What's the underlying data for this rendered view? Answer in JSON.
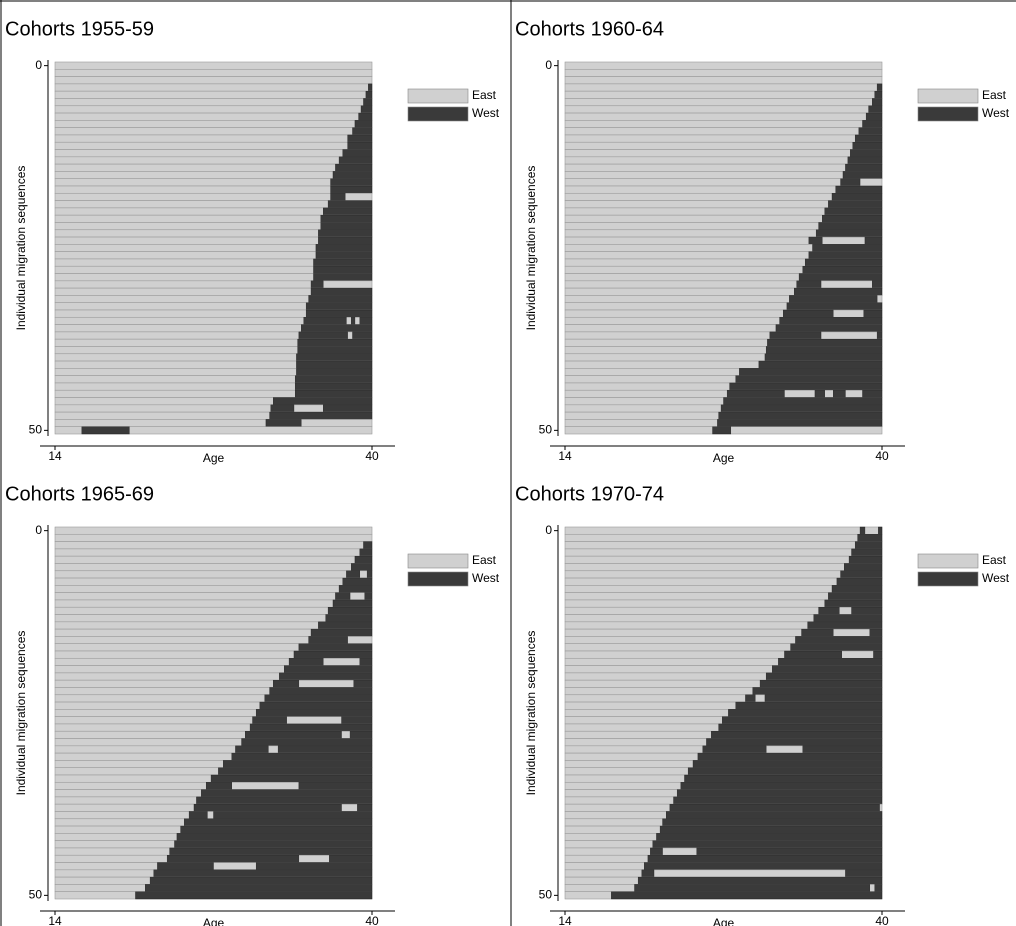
{
  "chart_data": [
    {
      "type": "sequence",
      "title": "Cohorts 1955-59",
      "xlabel": "Age",
      "ylabel": "Individual migration sequences",
      "xlim": [
        14,
        40
      ],
      "xticks": [
        14,
        40
      ],
      "ylim": [
        0,
        50
      ],
      "yticks": [
        0,
        50
      ],
      "series": [
        {
          "name": "East",
          "color": "#d0d0d0"
        },
        {
          "name": "West",
          "color": "#3a3a3a"
        }
      ],
      "sequences": [
        [],
        [],
        [],
        [
          [
            39.7,
            40
          ]
        ],
        [
          [
            39.5,
            40
          ]
        ],
        [
          [
            39.3,
            40
          ]
        ],
        [
          [
            39.1,
            40
          ]
        ],
        [
          [
            38.9,
            40
          ]
        ],
        [
          [
            38.6,
            40
          ]
        ],
        [
          [
            38.4,
            40
          ]
        ],
        [
          [
            38.0,
            40
          ]
        ],
        [
          [
            38.0,
            40
          ]
        ],
        [
          [
            37.6,
            40
          ]
        ],
        [
          [
            37.3,
            40
          ]
        ],
        [
          [
            37.0,
            40
          ]
        ],
        [
          [
            36.8,
            40
          ]
        ],
        [
          [
            36.6,
            40
          ]
        ],
        [
          [
            36.6,
            40
          ]
        ],
        [
          [
            36.6,
            37.8
          ]
        ],
        [
          [
            36.4,
            40
          ]
        ],
        [
          [
            36.0,
            40
          ]
        ],
        [
          [
            35.8,
            40
          ]
        ],
        [
          [
            35.8,
            40
          ]
        ],
        [
          [
            35.6,
            40
          ]
        ],
        [
          [
            35.6,
            40
          ]
        ],
        [
          [
            35.4,
            40
          ]
        ],
        [
          [
            35.4,
            40
          ]
        ],
        [
          [
            35.2,
            40
          ]
        ],
        [
          [
            35.2,
            40
          ]
        ],
        [
          [
            35.2,
            40
          ]
        ],
        [
          [
            35.0,
            36.0
          ]
        ],
        [
          [
            35.0,
            40
          ]
        ],
        [
          [
            34.8,
            40
          ]
        ],
        [
          [
            34.6,
            40
          ]
        ],
        [
          [
            34.6,
            40
          ]
        ],
        [
          [
            34.4,
            37.9
          ],
          [
            38.3,
            38.6
          ],
          [
            39.0,
            40
          ]
        ],
        [
          [
            34.2,
            40
          ]
        ],
        [
          [
            34.0,
            38.0
          ],
          [
            38.4,
            40
          ]
        ],
        [
          [
            33.9,
            40
          ]
        ],
        [
          [
            33.9,
            40
          ]
        ],
        [
          [
            33.8,
            40
          ]
        ],
        [
          [
            33.8,
            40
          ]
        ],
        [
          [
            33.8,
            40
          ]
        ],
        [
          [
            33.7,
            40
          ]
        ],
        [
          [
            33.7,
            40
          ]
        ],
        [
          [
            33.7,
            40
          ]
        ],
        [
          [
            31.9,
            40
          ]
        ],
        [
          [
            31.7,
            33.6
          ],
          [
            36.0,
            40
          ]
        ],
        [
          [
            31.6,
            40
          ]
        ],
        [
          [
            31.3,
            34.2
          ]
        ],
        [
          [
            16.2,
            20.1
          ]
        ]
      ]
    },
    {
      "type": "sequence",
      "title": "Cohorts 1960-64",
      "xlabel": "Age",
      "ylabel": "Individual migration sequences",
      "xlim": [
        14,
        40
      ],
      "xticks": [
        14,
        40
      ],
      "ylim": [
        0,
        50
      ],
      "yticks": [
        0,
        50
      ],
      "series": [
        {
          "name": "East",
          "color": "#d0d0d0"
        },
        {
          "name": "West",
          "color": "#3a3a3a"
        }
      ],
      "sequences": [
        [],
        [],
        [],
        [
          [
            39.6,
            40
          ]
        ],
        [
          [
            39.4,
            40
          ]
        ],
        [
          [
            39.2,
            40
          ]
        ],
        [
          [
            38.9,
            40
          ]
        ],
        [
          [
            38.7,
            40
          ]
        ],
        [
          [
            38.4,
            40
          ]
        ],
        [
          [
            38.1,
            40
          ]
        ],
        [
          [
            37.8,
            40
          ]
        ],
        [
          [
            37.6,
            40
          ]
        ],
        [
          [
            37.4,
            40
          ]
        ],
        [
          [
            37.2,
            40
          ]
        ],
        [
          [
            37.0,
            40
          ]
        ],
        [
          [
            36.8,
            40
          ]
        ],
        [
          [
            36.6,
            38.2
          ]
        ],
        [
          [
            36.2,
            40
          ]
        ],
        [
          [
            35.9,
            40
          ]
        ],
        [
          [
            35.6,
            40
          ]
        ],
        [
          [
            35.3,
            40
          ]
        ],
        [
          [
            35.1,
            40
          ]
        ],
        [
          [
            34.8,
            40
          ]
        ],
        [
          [
            34.6,
            40
          ]
        ],
        [
          [
            34.0,
            35.1
          ],
          [
            38.6,
            40
          ]
        ],
        [
          [
            34.3,
            40
          ]
        ],
        [
          [
            34.0,
            40
          ]
        ],
        [
          [
            33.7,
            40
          ]
        ],
        [
          [
            33.5,
            40
          ]
        ],
        [
          [
            33.2,
            40
          ]
        ],
        [
          [
            33.0,
            35.0
          ],
          [
            39.2,
            40
          ]
        ],
        [
          [
            32.8,
            40
          ]
        ],
        [
          [
            32.4,
            39.6
          ]
        ],
        [
          [
            32.2,
            40
          ]
        ],
        [
          [
            31.9,
            36.0
          ],
          [
            38.5,
            40
          ]
        ],
        [
          [
            31.6,
            40
          ]
        ],
        [
          [
            31.3,
            40
          ]
        ],
        [
          [
            30.8,
            35.0
          ],
          [
            39.6,
            40
          ]
        ],
        [
          [
            30.6,
            40
          ]
        ],
        [
          [
            30.5,
            40
          ]
        ],
        [
          [
            30.4,
            40
          ]
        ],
        [
          [
            29.9,
            40
          ]
        ],
        [
          [
            28.3,
            40
          ]
        ],
        [
          [
            28.0,
            40
          ]
        ],
        [
          [
            27.5,
            40
          ]
        ],
        [
          [
            27.3,
            32.0
          ],
          [
            34.5,
            35.3
          ],
          [
            36.0,
            37.0
          ],
          [
            38.4,
            40
          ]
        ],
        [
          [
            27.0,
            40
          ]
        ],
        [
          [
            26.8,
            40
          ]
        ],
        [
          [
            26.6,
            40
          ]
        ],
        [
          [
            26.5,
            40
          ]
        ],
        [
          [
            26.1,
            27.6
          ]
        ]
      ]
    },
    {
      "type": "sequence",
      "title": "Cohorts 1965-69",
      "xlabel": "Age",
      "ylabel": "Individual migration sequences",
      "xlim": [
        14,
        40
      ],
      "xticks": [
        14,
        40
      ],
      "ylim": [
        0,
        50
      ],
      "yticks": [
        0,
        50
      ],
      "series": [
        {
          "name": "East",
          "color": "#d0d0d0"
        },
        {
          "name": "West",
          "color": "#3a3a3a"
        }
      ],
      "sequences": [
        [],
        [],
        [
          [
            39.3,
            40
          ]
        ],
        [
          [
            39.0,
            40
          ]
        ],
        [
          [
            38.6,
            40
          ]
        ],
        [
          [
            38.3,
            40
          ]
        ],
        [
          [
            37.9,
            39.0
          ],
          [
            39.6,
            40
          ]
        ],
        [
          [
            37.6,
            40
          ]
        ],
        [
          [
            37.3,
            40
          ]
        ],
        [
          [
            37.0,
            38.2
          ],
          [
            39.4,
            40
          ]
        ],
        [
          [
            36.8,
            40
          ]
        ],
        [
          [
            36.4,
            40
          ]
        ],
        [
          [
            36.2,
            40
          ]
        ],
        [
          [
            35.6,
            40
          ]
        ],
        [
          [
            35.0,
            40
          ]
        ],
        [
          [
            34.8,
            38.0
          ]
        ],
        [
          [
            34.0,
            40
          ]
        ],
        [
          [
            33.6,
            40
          ]
        ],
        [
          [
            33.2,
            36.0
          ],
          [
            39.0,
            40
          ]
        ],
        [
          [
            32.8,
            40
          ]
        ],
        [
          [
            32.4,
            40
          ]
        ],
        [
          [
            31.9,
            34.0
          ],
          [
            38.5,
            40
          ]
        ],
        [
          [
            31.6,
            40
          ]
        ],
        [
          [
            31.2,
            40
          ]
        ],
        [
          [
            30.8,
            40
          ]
        ],
        [
          [
            30.5,
            40
          ]
        ],
        [
          [
            30.2,
            33.0
          ],
          [
            37.5,
            40
          ]
        ],
        [
          [
            30.0,
            40
          ]
        ],
        [
          [
            29.6,
            37.5
          ],
          [
            38.2,
            40
          ]
        ],
        [
          [
            29.3,
            40
          ]
        ],
        [
          [
            28.8,
            31.5
          ],
          [
            32.3,
            40
          ]
        ],
        [
          [
            28.5,
            40
          ]
        ],
        [
          [
            27.8,
            40
          ]
        ],
        [
          [
            27.4,
            40
          ]
        ],
        [
          [
            26.8,
            40
          ]
        ],
        [
          [
            26.4,
            28.5
          ],
          [
            34.0,
            40
          ]
        ],
        [
          [
            26.0,
            40
          ]
        ],
        [
          [
            25.6,
            40
          ]
        ],
        [
          [
            25.4,
            37.5
          ],
          [
            38.8,
            40
          ]
        ],
        [
          [
            25.0,
            26.5
          ],
          [
            27.0,
            40
          ]
        ],
        [
          [
            24.6,
            40
          ]
        ],
        [
          [
            24.3,
            40
          ]
        ],
        [
          [
            24.0,
            40
          ]
        ],
        [
          [
            23.8,
            40
          ]
        ],
        [
          [
            23.4,
            40
          ]
        ],
        [
          [
            23.2,
            34.0
          ],
          [
            36.5,
            40
          ]
        ],
        [
          [
            22.4,
            27.0
          ],
          [
            30.5,
            40
          ]
        ],
        [
          [
            22.1,
            40
          ]
        ],
        [
          [
            21.8,
            40
          ]
        ],
        [
          [
            21.4,
            40
          ]
        ],
        [
          [
            20.6,
            40
          ]
        ]
      ]
    },
    {
      "type": "sequence",
      "title": "Cohorts 1970-74",
      "xlabel": "Age",
      "ylabel": "Individual migration sequences",
      "xlim": [
        14,
        40
      ],
      "xticks": [
        14,
        40
      ],
      "ylim": [
        0,
        50
      ],
      "yticks": [
        0,
        50
      ],
      "series": [
        {
          "name": "East",
          "color": "#d0d0d0"
        },
        {
          "name": "West",
          "color": "#3a3a3a"
        }
      ],
      "sequences": [
        [
          [
            38.2,
            38.6
          ],
          [
            39.7,
            40
          ]
        ],
        [
          [
            38.0,
            40
          ]
        ],
        [
          [
            37.8,
            40
          ]
        ],
        [
          [
            37.5,
            40
          ]
        ],
        [
          [
            37.3,
            40
          ]
        ],
        [
          [
            36.9,
            40
          ]
        ],
        [
          [
            36.6,
            40
          ]
        ],
        [
          [
            36.3,
            40
          ]
        ],
        [
          [
            35.9,
            40
          ]
        ],
        [
          [
            35.6,
            40
          ]
        ],
        [
          [
            35.3,
            40
          ]
        ],
        [
          [
            34.8,
            36.5
          ],
          [
            37.5,
            40
          ]
        ],
        [
          [
            34.4,
            40
          ]
        ],
        [
          [
            33.9,
            40
          ]
        ],
        [
          [
            33.4,
            36.0
          ],
          [
            39.0,
            40
          ]
        ],
        [
          [
            32.9,
            40
          ]
        ],
        [
          [
            32.5,
            40
          ]
        ],
        [
          [
            32.0,
            36.7
          ],
          [
            39.3,
            40
          ]
        ],
        [
          [
            31.5,
            40
          ]
        ],
        [
          [
            31.0,
            40
          ]
        ],
        [
          [
            30.5,
            40
          ]
        ],
        [
          [
            30.0,
            40
          ]
        ],
        [
          [
            29.4,
            40
          ]
        ],
        [
          [
            28.8,
            29.6
          ],
          [
            30.4,
            40
          ]
        ],
        [
          [
            28.0,
            40
          ]
        ],
        [
          [
            27.4,
            40
          ]
        ],
        [
          [
            26.9,
            40
          ]
        ],
        [
          [
            26.6,
            40
          ]
        ],
        [
          [
            26.0,
            40
          ]
        ],
        [
          [
            25.6,
            40
          ]
        ],
        [
          [
            25.3,
            30.5
          ],
          [
            33.5,
            40
          ]
        ],
        [
          [
            24.9,
            40
          ]
        ],
        [
          [
            24.5,
            40
          ]
        ],
        [
          [
            24.1,
            40
          ]
        ],
        [
          [
            23.8,
            40
          ]
        ],
        [
          [
            23.5,
            40
          ]
        ],
        [
          [
            23.2,
            40
          ]
        ],
        [
          [
            22.9,
            40
          ]
        ],
        [
          [
            22.6,
            39.8
          ]
        ],
        [
          [
            22.3,
            40
          ]
        ],
        [
          [
            22.0,
            40
          ]
        ],
        [
          [
            21.8,
            40
          ]
        ],
        [
          [
            21.5,
            40
          ]
        ],
        [
          [
            21.2,
            40
          ]
        ],
        [
          [
            21.0,
            22.0
          ],
          [
            24.8,
            40
          ]
        ],
        [
          [
            20.8,
            40
          ]
        ],
        [
          [
            20.5,
            40
          ]
        ],
        [
          [
            20.3,
            21.3
          ],
          [
            37.0,
            40
          ]
        ],
        [
          [
            20.0,
            40
          ]
        ],
        [
          [
            19.7,
            39.0
          ],
          [
            39.4,
            40
          ]
        ],
        [
          [
            17.8,
            40
          ]
        ]
      ]
    }
  ]
}
